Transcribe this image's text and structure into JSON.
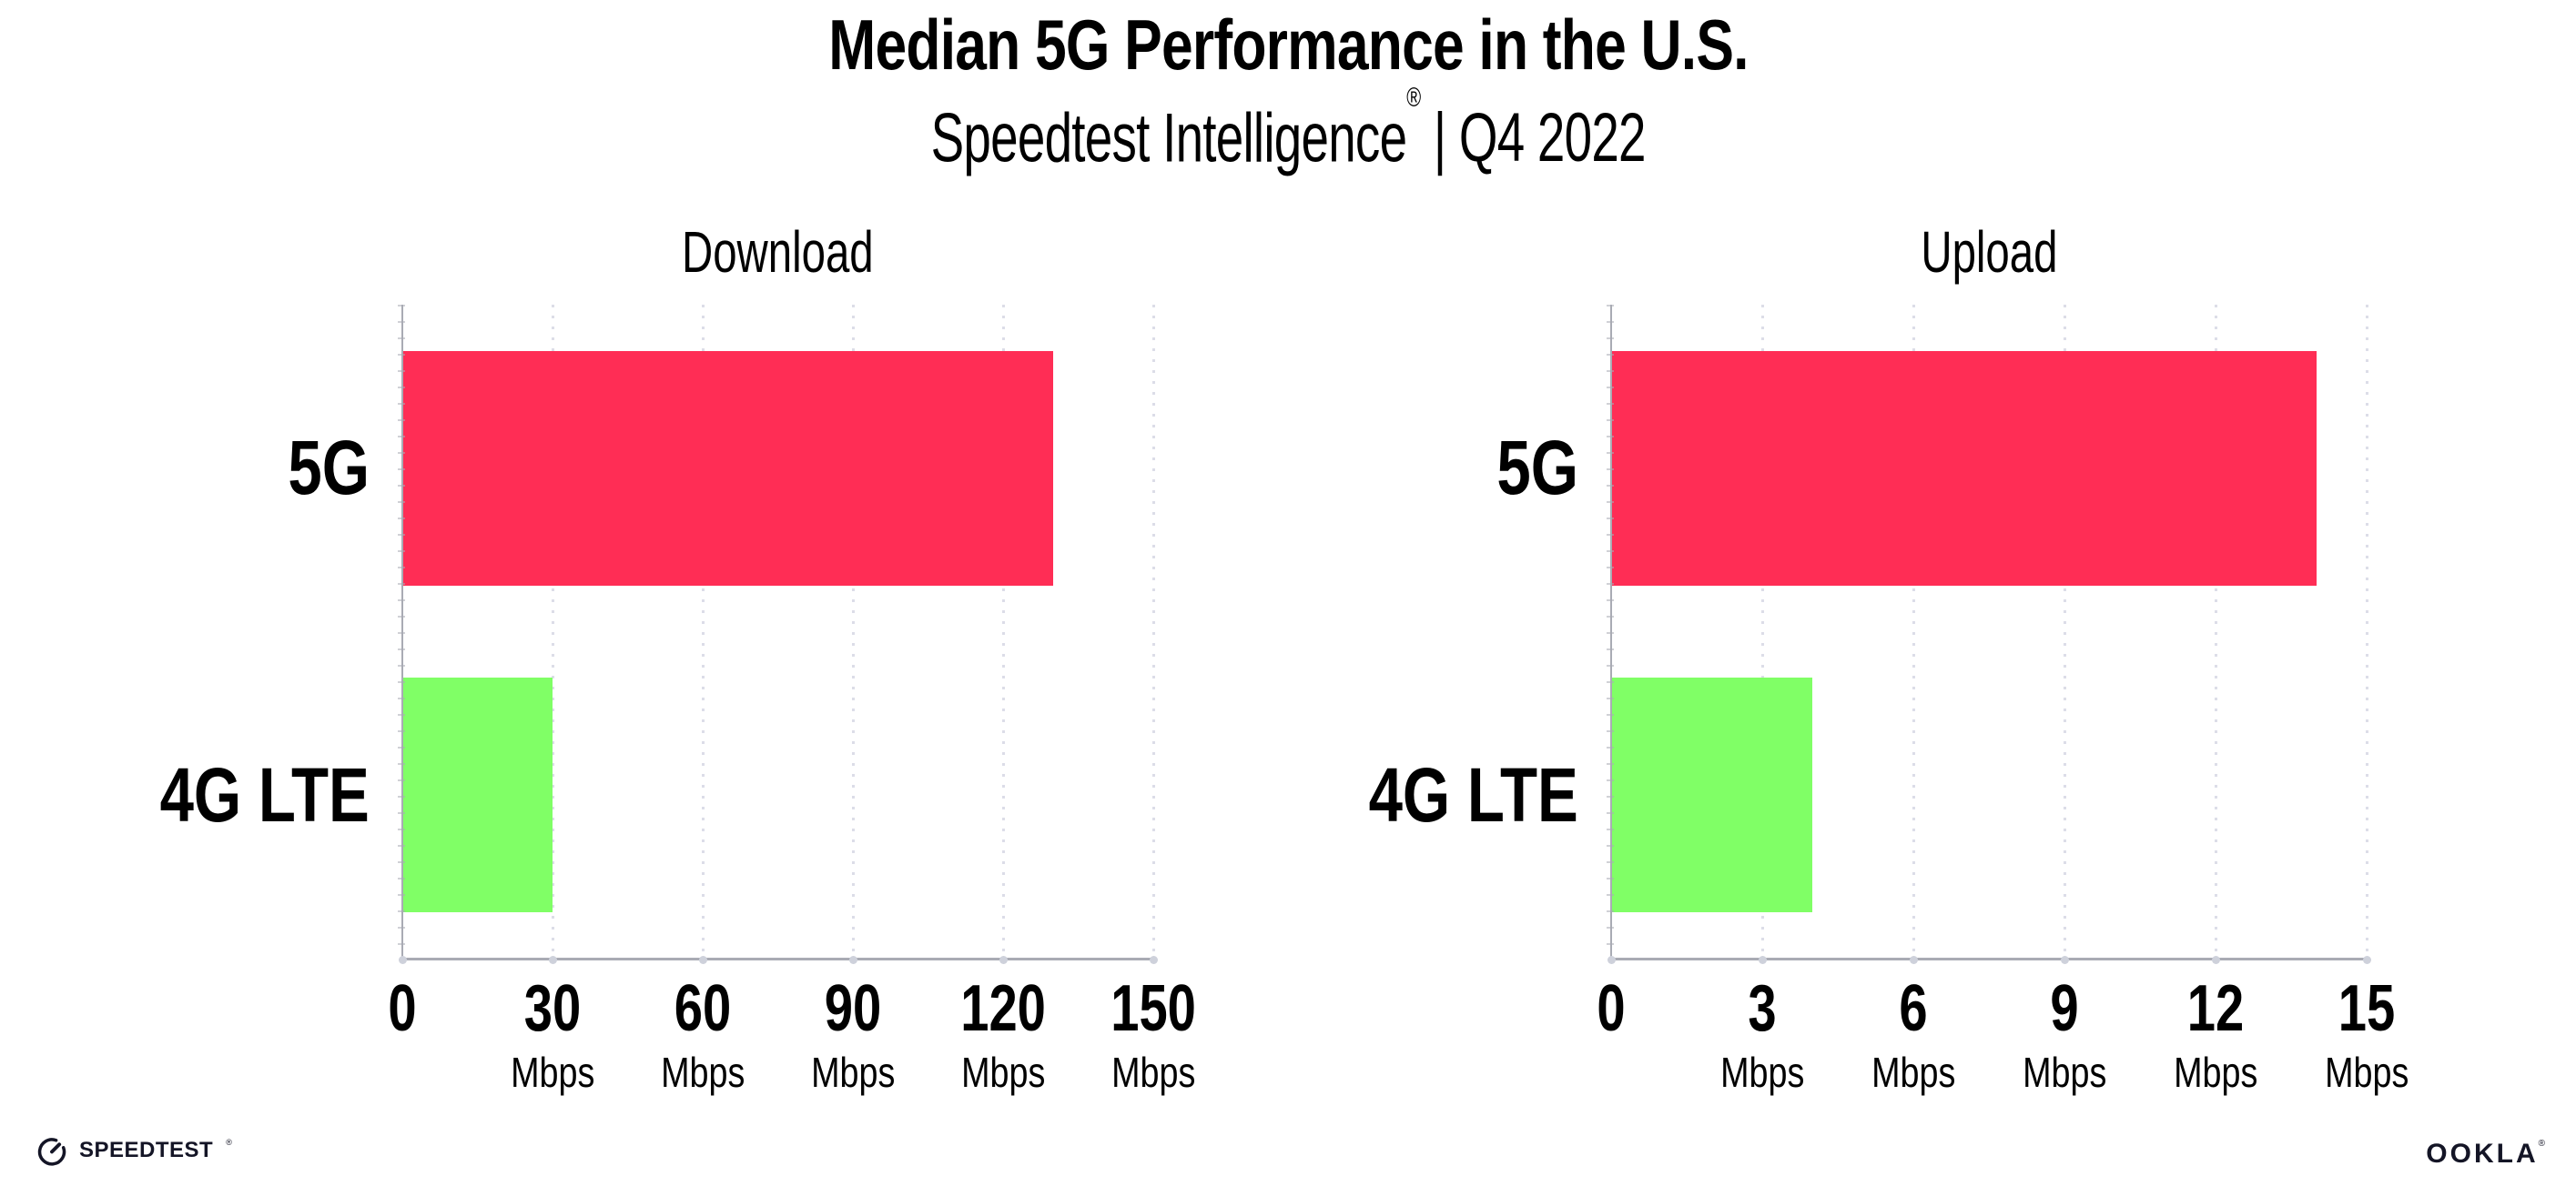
{
  "header": {
    "title": "Median 5G Performance in the U.S.",
    "subtitle_brand": "Speedtest Intelligence",
    "subtitle_reg": "®",
    "subtitle_rest": "| Q4 2022"
  },
  "chart_data": [
    {
      "type": "bar",
      "orientation": "horizontal",
      "title": "Download",
      "categories": [
        "5G",
        "4G LTE"
      ],
      "values": [
        130,
        30
      ],
      "unit": "Mbps",
      "xlim": [
        0,
        150
      ],
      "xticks": [
        0,
        30,
        60,
        90,
        120,
        150
      ],
      "xtick_unit": "Mbps",
      "bar_colors": [
        "#ff2d55",
        "#80ff66"
      ],
      "grid": "vertical-dotted",
      "legend": "none"
    },
    {
      "type": "bar",
      "orientation": "horizontal",
      "title": "Upload",
      "categories": [
        "5G",
        "4G LTE"
      ],
      "values": [
        14,
        4
      ],
      "unit": "Mbps",
      "xlim": [
        0,
        15
      ],
      "xticks": [
        0,
        3,
        6,
        9,
        12,
        15
      ],
      "xtick_unit": "Mbps",
      "bar_colors": [
        "#ff2d55",
        "#80ff66"
      ],
      "grid": "vertical-dotted",
      "legend": "none"
    }
  ],
  "footer": {
    "speedtest_label": "SPEEDTEST",
    "speedtest_reg": "®",
    "ookla_label": "OOKLA",
    "ookla_reg": "®"
  },
  "colors": {
    "bar_5g": "#ff2d55",
    "bar_4g_lte": "#80ff66",
    "gridline": "#dcdde8",
    "axis": "#a9abb4",
    "text": "#000000",
    "logo": "#141526"
  }
}
